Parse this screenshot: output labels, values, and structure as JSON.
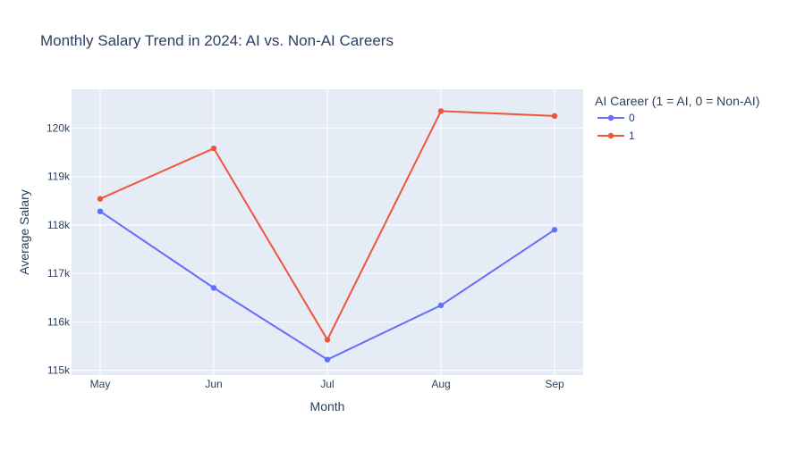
{
  "chart_data": {
    "type": "line",
    "title": "Monthly Salary Trend in 2024: AI vs. Non-AI Careers",
    "xlabel": "Month",
    "ylabel": "Average Salary",
    "categories": [
      "May",
      "Jun",
      "Jul",
      "Aug",
      "Sep"
    ],
    "ylim": [
      114900,
      120800
    ],
    "yticks": [
      115000,
      116000,
      117000,
      118000,
      119000,
      120000
    ],
    "ytick_labels": [
      "115k",
      "116k",
      "117k",
      "118k",
      "119k",
      "120k"
    ],
    "grid": true,
    "legend": {
      "title": "AI Career (1 = AI, 0 = Non-AI)",
      "placement": "right"
    },
    "series": [
      {
        "name": "0",
        "color": "#636efa",
        "values": [
          118280,
          116700,
          115220,
          116340,
          117900
        ]
      },
      {
        "name": "1",
        "color": "#ef553b",
        "values": [
          118540,
          119580,
          115630,
          120350,
          120250
        ]
      }
    ],
    "colors": {
      "plot_bg": "#e5ecf6",
      "grid": "#ffffff",
      "text": "#2a3f5f"
    }
  }
}
